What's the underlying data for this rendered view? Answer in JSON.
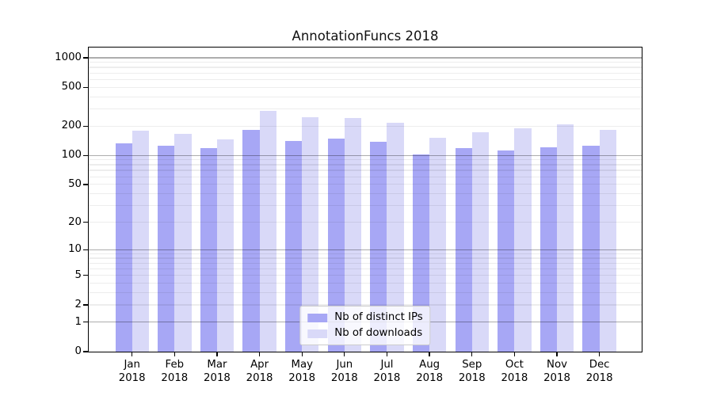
{
  "figure": {
    "background": "#ffffff"
  },
  "chart_data": {
    "type": "bar",
    "title": "AnnotationFuncs 2018",
    "categories": [
      "Jan",
      "Feb",
      "Mar",
      "Apr",
      "May",
      "Jun",
      "Jul",
      "Aug",
      "Sep",
      "Oct",
      "Nov",
      "Dec"
    ],
    "category_year": "2018",
    "series": [
      {
        "name": "Nb of distinct IPs",
        "color": "#a7a7f5",
        "values": [
          133,
          125,
          119,
          182,
          142,
          150,
          137,
          102,
          118,
          112,
          122,
          125
        ]
      },
      {
        "name": "Nb of downloads",
        "color": "#d9d9f8",
        "values": [
          178,
          166,
          145,
          288,
          248,
          241,
          217,
          151,
          172,
          190,
          209,
          182
        ]
      }
    ],
    "yscale": "log1p",
    "ylim": [
      0,
      1274
    ],
    "yticks": [
      0,
      1,
      2,
      5,
      10,
      20,
      50,
      100,
      200,
      500,
      1000
    ],
    "grid": {
      "on": true,
      "major_values": [
        1,
        10,
        100,
        1000
      ],
      "major_color": "rgba(0,0,0,0.32)",
      "minor_color": "rgba(0,0,0,0.07)"
    },
    "legend_position": "lower center"
  }
}
